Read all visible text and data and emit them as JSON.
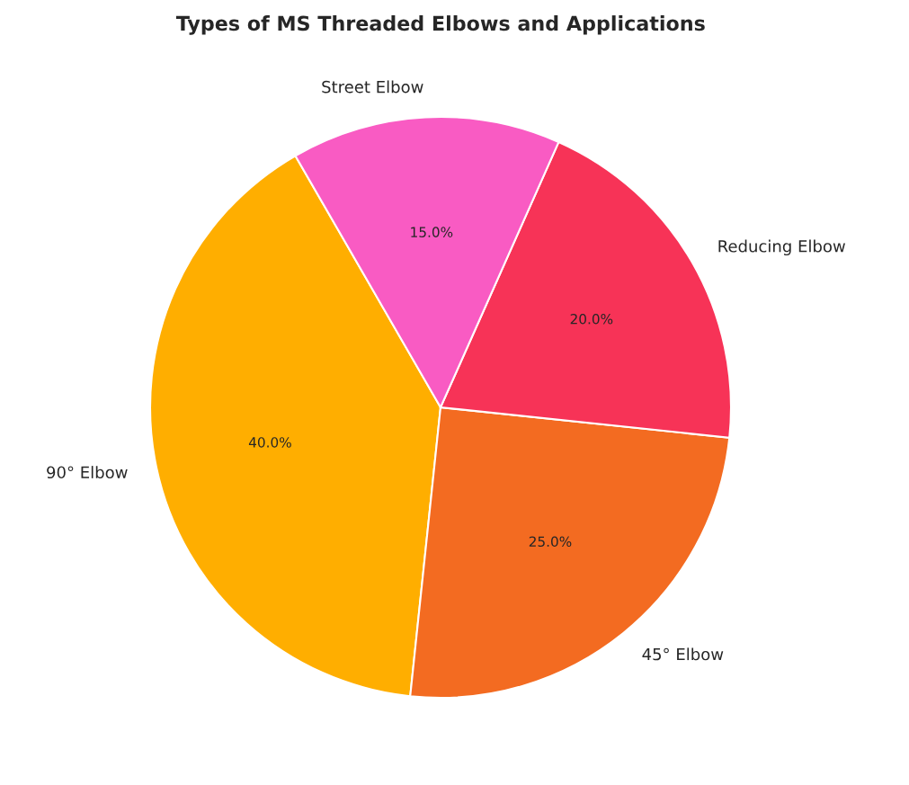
{
  "chart_data": {
    "type": "pie",
    "title": "Types of MS Threaded Elbows and Applications",
    "categories": [
      "90° Elbow",
      "45° Elbow",
      "Reducing Elbow",
      "Street Elbow"
    ],
    "values": [
      40,
      25,
      20,
      15
    ],
    "value_labels": [
      "40.0%",
      "25.0%",
      "20.0%",
      "15.0%"
    ],
    "colors": [
      "#ffae00",
      "#f36b21",
      "#f73357",
      "#f95bc3"
    ]
  }
}
